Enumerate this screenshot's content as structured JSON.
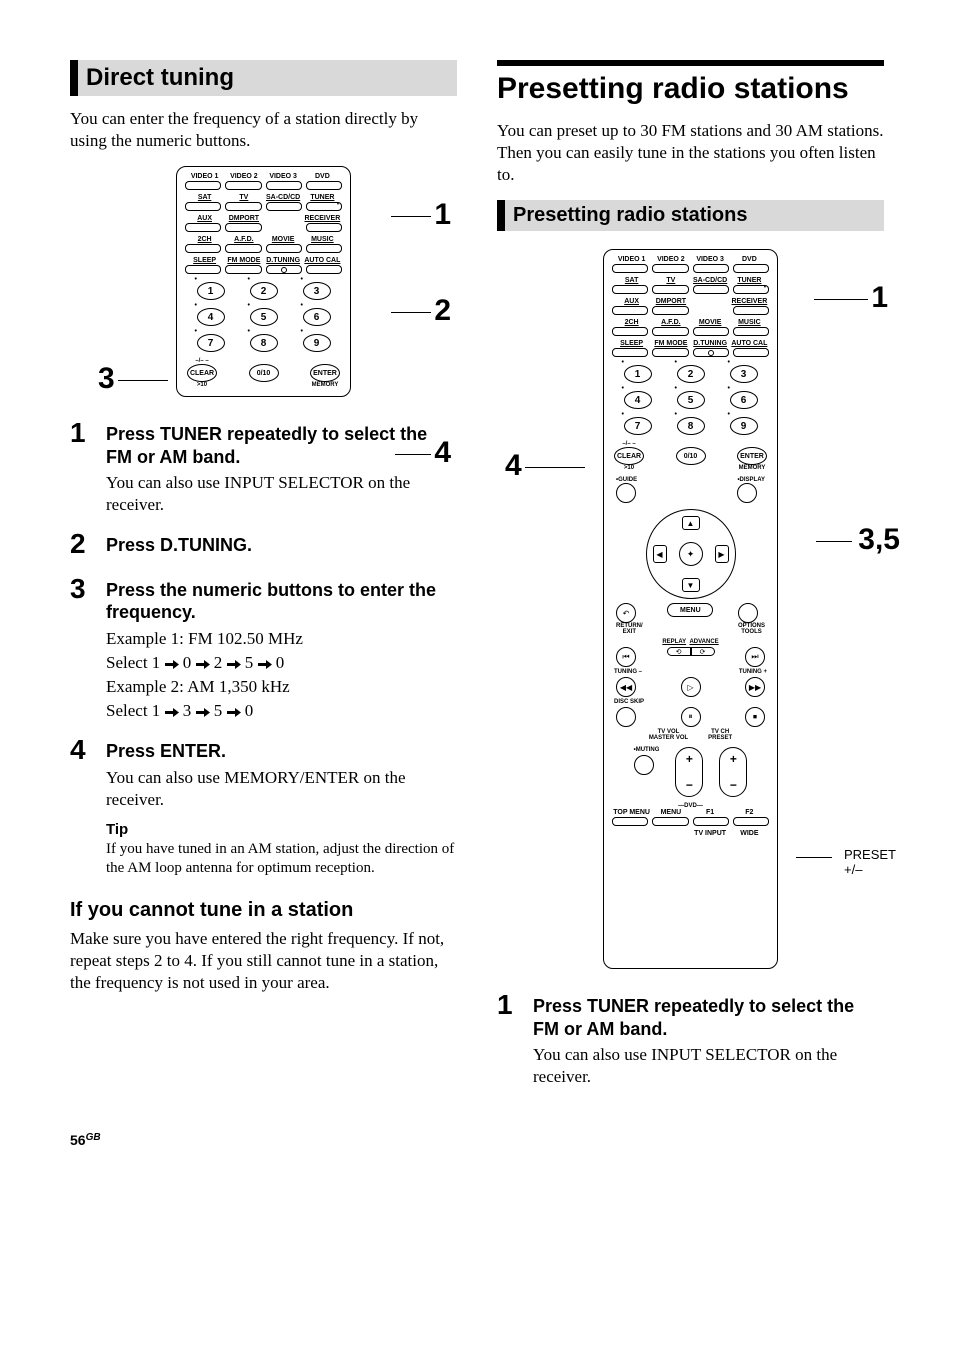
{
  "page_number": "56",
  "page_suffix": "GB",
  "left": {
    "section_title": "Direct tuning",
    "intro": "You can enter the frequency of a station directly by using the numeric buttons.",
    "callouts": {
      "c1": "1",
      "c2": "2",
      "c3": "3",
      "c4": "4"
    },
    "steps": [
      {
        "num": "1",
        "head": "Press TUNER repeatedly to select the FM or AM band.",
        "body": "You can also use INPUT SELECTOR on the receiver."
      },
      {
        "num": "2",
        "head": "Press D.TUNING.",
        "body": ""
      },
      {
        "num": "3",
        "head": "Press the numeric buttons to enter the frequency.",
        "ex1a": "Example 1: FM 102.50 MHz",
        "ex1b_pre": "Select 1 ",
        "ex1b_seq": [
          "0",
          "2",
          "5",
          "0"
        ],
        "ex2a": "Example 2: AM 1,350 kHz",
        "ex2b_pre": "Select 1 ",
        "ex2b_seq": [
          "3",
          "5",
          "0"
        ]
      },
      {
        "num": "4",
        "head": "Press ENTER.",
        "body": "You can also use MEMORY/ENTER on the receiver.",
        "tip_head": "Tip",
        "tip_body": "If you have tuned in an AM station, adjust the direction of the AM loop antenna for optimum reception."
      }
    ],
    "cannot_head": "If you cannot tune in a station",
    "cannot_body": "Make sure you have entered the right frequency. If not, repeat steps 2 to 4. If you still cannot tune in a station, the frequency is not used in your area."
  },
  "right": {
    "main_title": "Presetting radio stations",
    "intro": "You can preset up to 30 FM stations and 30 AM stations. Then you can easily tune in the stations you often listen to.",
    "section_title": "Presetting radio stations",
    "callouts": {
      "c1": "1",
      "c4": "4",
      "c35": "3,5"
    },
    "preset_label_line1": "PRESET",
    "preset_label_line2": "+/–",
    "steps": [
      {
        "num": "1",
        "head": "Press TUNER repeatedly to select the FM or AM band.",
        "body": "You can also use INPUT SELECTOR on the receiver."
      }
    ]
  },
  "remote": {
    "row1": [
      "VIDEO 1",
      "VIDEO 2",
      "VIDEO 3",
      "DVD"
    ],
    "row2": [
      "SAT",
      "TV",
      "SA-CD/CD",
      "TUNER"
    ],
    "row3": [
      "AUX",
      "DMPORT",
      "",
      "RECEIVER"
    ],
    "row4": [
      "2CH",
      "A.F.D.",
      "MOVIE",
      "MUSIC"
    ],
    "row5": [
      "SLEEP",
      "FM MODE",
      "D.TUNING",
      "AUTO CAL"
    ],
    "nums": [
      "1",
      "2",
      "3",
      "4",
      "5",
      "6",
      "7",
      "8",
      "9"
    ],
    "clear": "CLEAR",
    "clear_over": "–/– –",
    "clear_under": ">10",
    "zero": "0/10",
    "enter": "ENTER",
    "enter_under": "MEMORY",
    "guide": "GUIDE",
    "display": "DISPLAY",
    "return": "RETURN/\nEXIT",
    "menu": "MENU",
    "options": "OPTIONS\nTOOLS",
    "replay": "REPLAY",
    "advance": "ADVANCE",
    "tuning_minus": "TUNING –",
    "tuning_plus": "TUNING +",
    "disc_skip": "DISC SKIP",
    "tv_vol": "TV VOL\nMASTER VOL",
    "tv_ch": "TV CH\nPRESET",
    "muting": "MUTING",
    "dvd": "DVD",
    "top_menu": "TOP MENU",
    "menu2": "MENU",
    "f1": "F1",
    "f2": "F2",
    "tv_input": "TV INPUT",
    "wide": "WIDE"
  }
}
